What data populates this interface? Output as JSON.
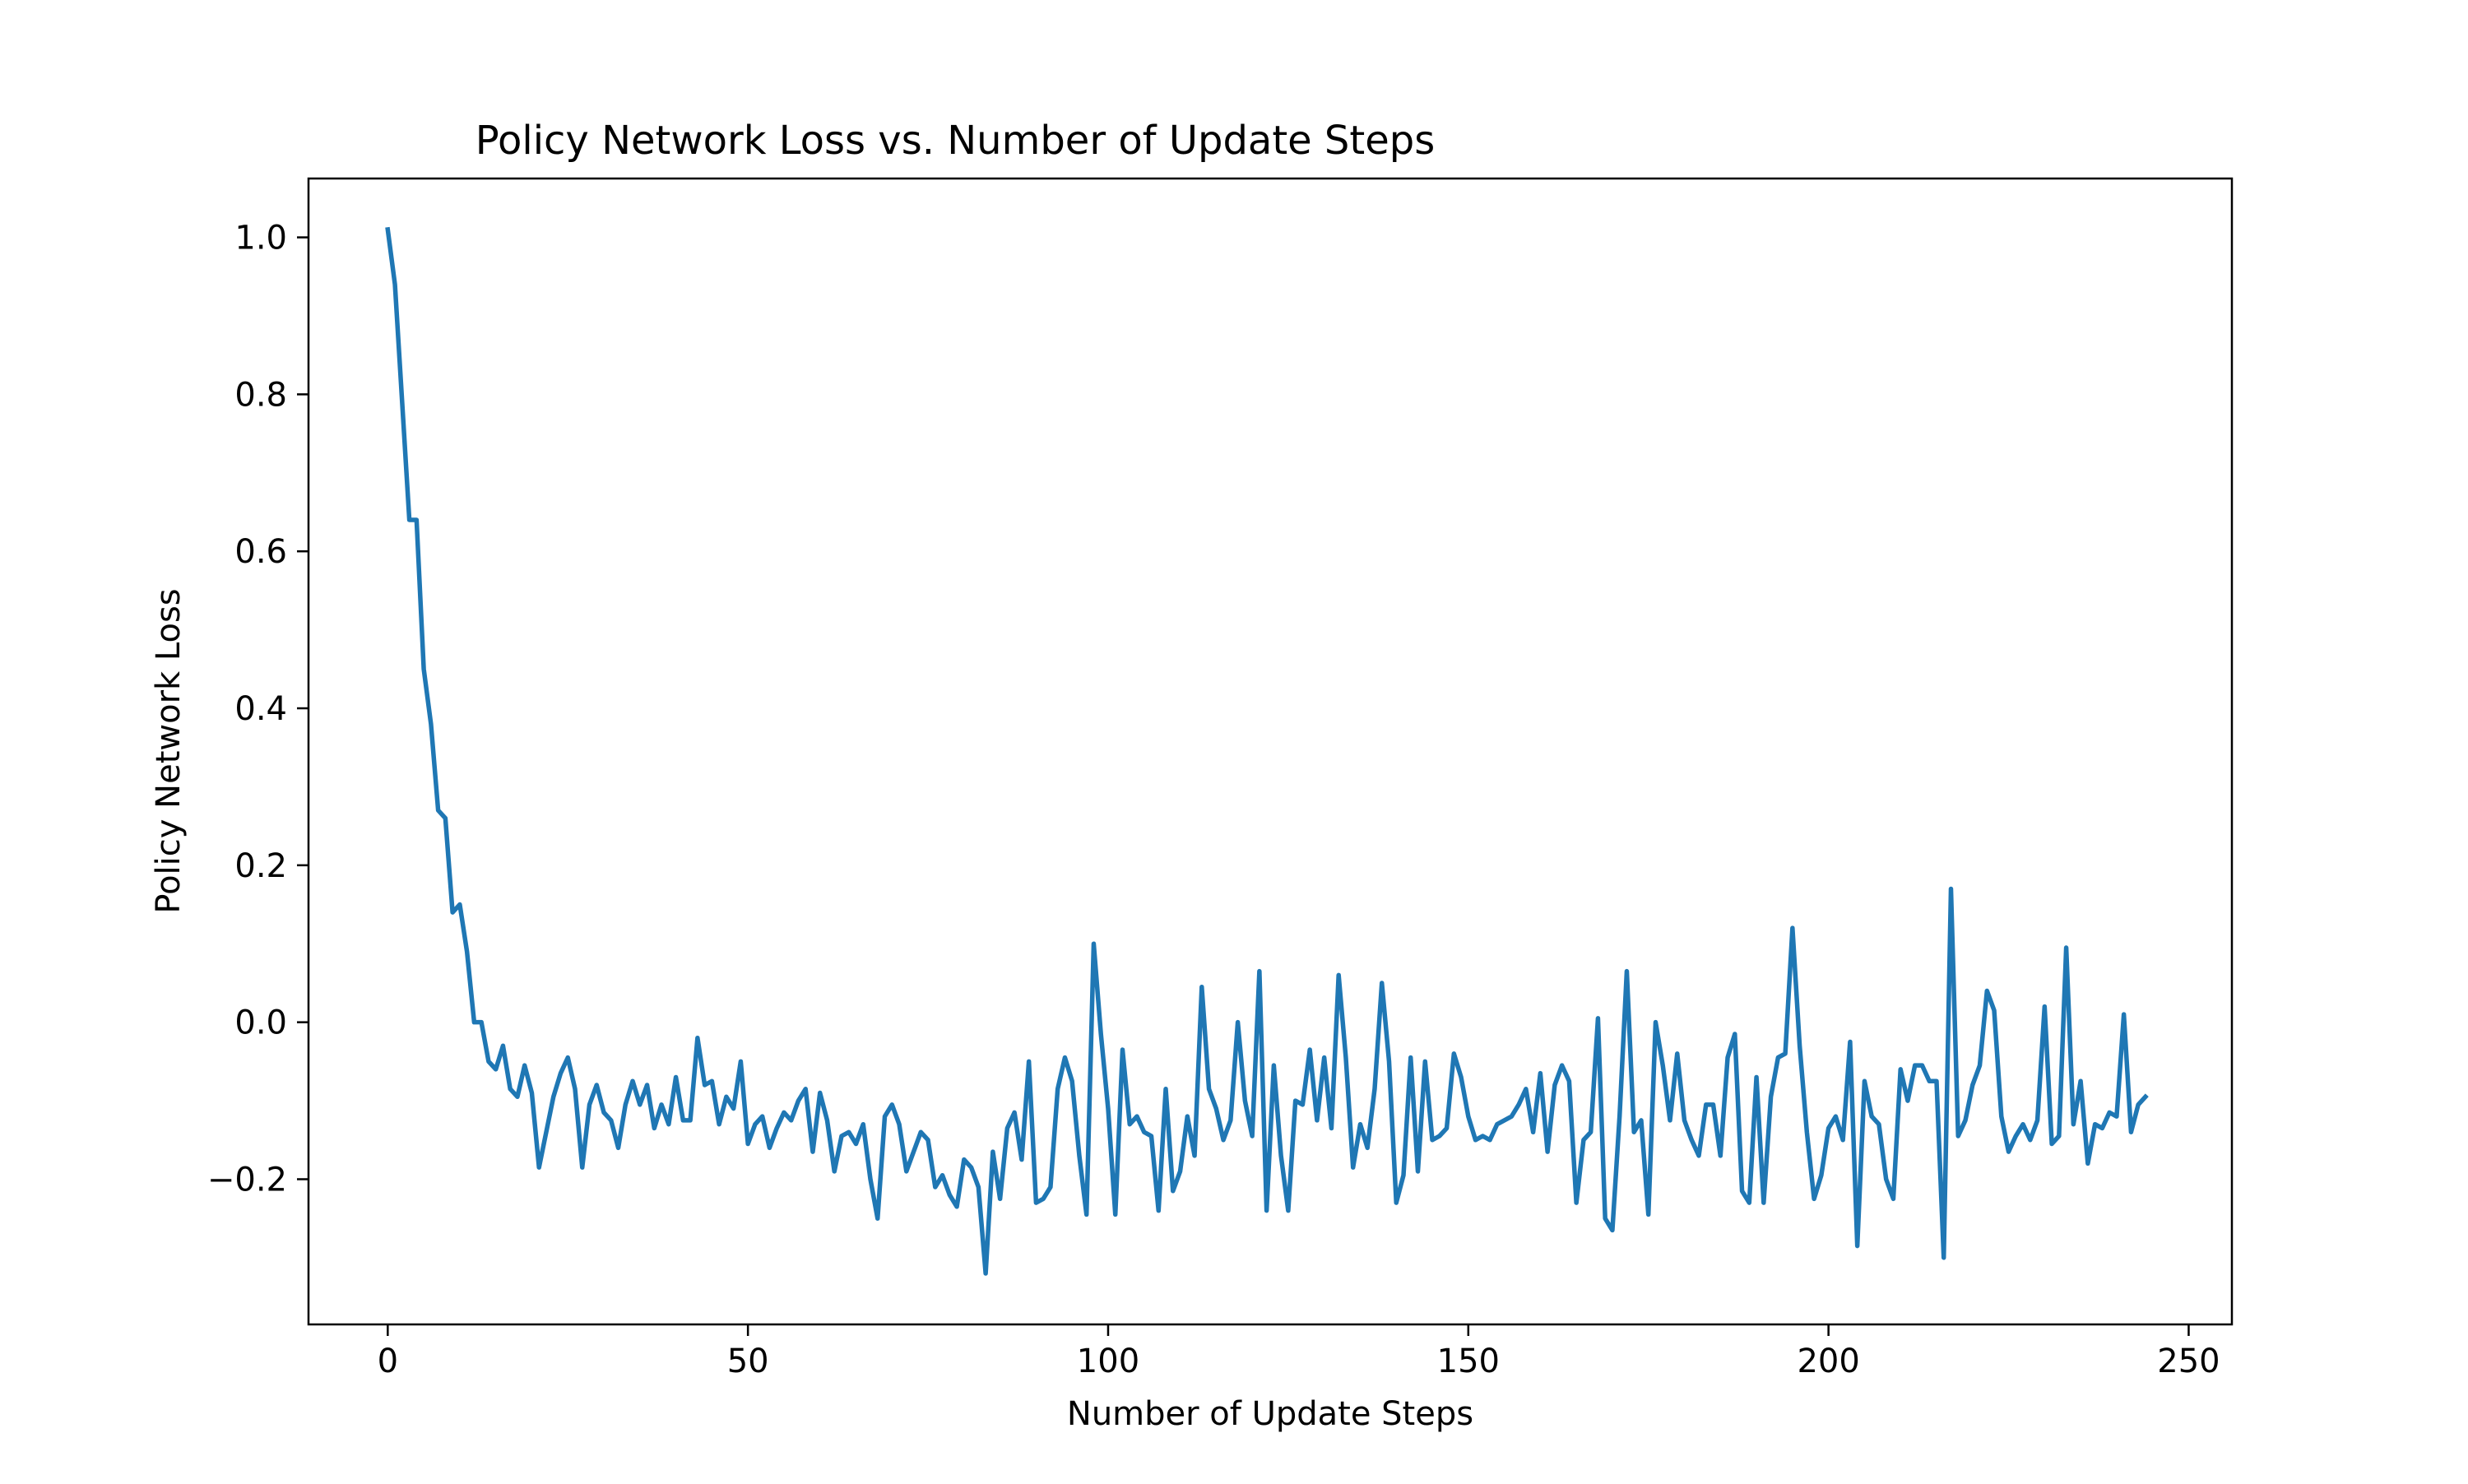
{
  "chart_data": {
    "type": "line",
    "title": "Policy Network Loss vs. Number of Update Steps",
    "xlabel": "Number of Update Steps",
    "ylabel": "Policy Network Loss",
    "xlim": [
      -11,
      256
    ],
    "ylim": [
      -0.385,
      1.075
    ],
    "x_ticks": [
      0,
      50,
      100,
      150,
      200,
      250
    ],
    "x_tick_labels": [
      "0",
      "50",
      "100",
      "150",
      "200",
      "250"
    ],
    "y_ticks": [
      -0.2,
      0.0,
      0.2,
      0.4,
      0.6,
      0.8,
      1.0
    ],
    "y_tick_labels": [
      "−0.2",
      "0.0",
      "0.2",
      "0.4",
      "0.6",
      "0.8",
      "1.0"
    ],
    "grid": false,
    "legend": "none",
    "line_color": "#1f77b4",
    "series": [
      {
        "x_start": 0,
        "x_step": 1,
        "values": [
          1.01,
          0.94,
          0.79,
          0.64,
          0.64,
          0.45,
          0.38,
          0.27,
          0.26,
          0.14,
          0.15,
          0.09,
          0.0,
          0.0,
          -0.05,
          -0.06,
          -0.03,
          -0.085,
          -0.095,
          -0.055,
          -0.09,
          -0.185,
          -0.14,
          -0.095,
          -0.065,
          -0.045,
          -0.085,
          -0.185,
          -0.105,
          -0.08,
          -0.115,
          -0.125,
          -0.16,
          -0.105,
          -0.075,
          -0.105,
          -0.08,
          -0.135,
          -0.105,
          -0.13,
          -0.07,
          -0.125,
          -0.125,
          -0.02,
          -0.08,
          -0.075,
          -0.13,
          -0.095,
          -0.11,
          -0.05,
          -0.155,
          -0.13,
          -0.12,
          -0.16,
          -0.135,
          -0.115,
          -0.125,
          -0.1,
          -0.085,
          -0.165,
          -0.09,
          -0.125,
          -0.19,
          -0.145,
          -0.14,
          -0.155,
          -0.13,
          -0.2,
          -0.25,
          -0.12,
          -0.105,
          -0.13,
          -0.19,
          -0.165,
          -0.14,
          -0.15,
          -0.21,
          -0.195,
          -0.22,
          -0.235,
          -0.175,
          -0.185,
          -0.21,
          -0.32,
          -0.165,
          -0.225,
          -0.135,
          -0.115,
          -0.175,
          -0.05,
          -0.23,
          -0.225,
          -0.21,
          -0.085,
          -0.045,
          -0.075,
          -0.17,
          -0.245,
          0.1,
          -0.015,
          -0.11,
          -0.245,
          -0.035,
          -0.13,
          -0.12,
          -0.14,
          -0.145,
          -0.24,
          -0.085,
          -0.215,
          -0.19,
          -0.12,
          -0.17,
          0.045,
          -0.085,
          -0.11,
          -0.15,
          -0.125,
          0.0,
          -0.1,
          -0.145,
          0.065,
          -0.24,
          -0.055,
          -0.17,
          -0.24,
          -0.1,
          -0.105,
          -0.035,
          -0.125,
          -0.045,
          -0.135,
          0.06,
          -0.045,
          -0.185,
          -0.13,
          -0.16,
          -0.085,
          0.05,
          -0.05,
          -0.23,
          -0.195,
          -0.045,
          -0.19,
          -0.05,
          -0.15,
          -0.145,
          -0.135,
          -0.04,
          -0.07,
          -0.12,
          -0.15,
          -0.145,
          -0.15,
          -0.13,
          -0.125,
          -0.12,
          -0.105,
          -0.085,
          -0.14,
          -0.065,
          -0.165,
          -0.08,
          -0.055,
          -0.075,
          -0.23,
          -0.15,
          -0.14,
          0.005,
          -0.25,
          -0.265,
          -0.12,
          0.065,
          -0.14,
          -0.125,
          -0.245,
          0.0,
          -0.055,
          -0.125,
          -0.04,
          -0.125,
          -0.15,
          -0.17,
          -0.105,
          -0.105,
          -0.17,
          -0.045,
          -0.015,
          -0.215,
          -0.23,
          -0.07,
          -0.23,
          -0.095,
          -0.045,
          -0.04,
          0.12,
          -0.03,
          -0.14,
          -0.225,
          -0.195,
          -0.135,
          -0.12,
          -0.15,
          -0.025,
          -0.285,
          -0.075,
          -0.12,
          -0.13,
          -0.2,
          -0.225,
          -0.06,
          -0.1,
          -0.055,
          -0.055,
          -0.075,
          -0.075,
          -0.3,
          0.17,
          -0.145,
          -0.125,
          -0.08,
          -0.055,
          0.04,
          0.015,
          -0.12,
          -0.165,
          -0.145,
          -0.13,
          -0.15,
          -0.125,
          0.02,
          -0.155,
          -0.145,
          0.095,
          -0.13,
          -0.075,
          -0.18,
          -0.13,
          -0.135,
          -0.115,
          -0.12,
          0.01,
          -0.14,
          -0.105,
          -0.095
        ]
      }
    ]
  }
}
